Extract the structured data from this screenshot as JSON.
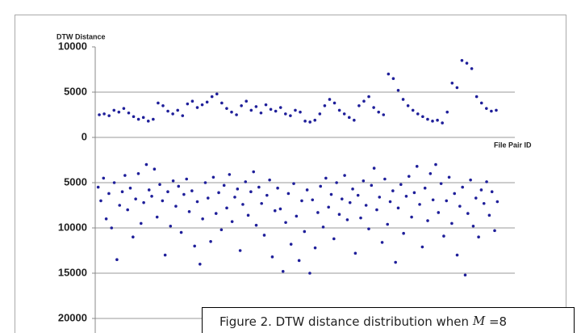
{
  "chart_data": {
    "type": "scatter",
    "y_label": "DTW Distance",
    "x_label": "File Pair ID",
    "ylim": [
      -21500,
      10000
    ],
    "yticks": [
      10000,
      5000,
      0,
      {
        "value": -5000,
        "label": "5000"
      },
      {
        "value": -10000,
        "label": "10000"
      },
      {
        "value": -15000,
        "label": "15000"
      },
      {
        "value": -20000,
        "label": "20000"
      }
    ],
    "grid": true,
    "series": [
      {
        "name": "upper",
        "color": "#1f1f9a",
        "values": [
          2500,
          2600,
          2400,
          3000,
          2800,
          3200,
          2700,
          2300,
          2000,
          2200,
          1800,
          2000,
          3800,
          3500,
          2900,
          2600,
          3000,
          2400,
          3700,
          4000,
          3300,
          3600,
          3900,
          4500,
          4800,
          3800,
          3200,
          2800,
          2500,
          3500,
          4000,
          3000,
          3400,
          2700,
          3600,
          3100,
          2900,
          3300,
          2600,
          2400,
          3000,
          2800,
          1800,
          1700,
          1900,
          2600,
          3500,
          4200,
          3800,
          3000,
          2600,
          2200,
          1900,
          3500,
          4000,
          4500,
          3300,
          2800,
          2500,
          7000,
          6500,
          5200,
          4200,
          3500,
          3000,
          2600,
          2300,
          2000,
          1800,
          1900,
          1600,
          2800,
          6000,
          5500,
          8500,
          8200,
          7600,
          4500,
          3800,
          3200,
          2900,
          3000
        ]
      },
      {
        "name": "lower",
        "color": "#1f1f9a",
        "values": [
          -5500,
          -7000,
          -4500,
          -9000,
          -6200,
          -10000,
          -5000,
          -13500,
          -7500,
          -6000,
          -4200,
          -8000,
          -5600,
          -11000,
          -6800,
          -4000,
          -9500,
          -7200,
          -3000,
          -5800,
          -6500,
          -3500,
          -8800,
          -5200,
          -7000,
          -13000,
          -6000,
          -9800,
          -4800,
          -7600,
          -5400,
          -10500,
          -6300,
          -4600,
          -8200,
          -5900,
          -12000,
          -7100,
          -14000,
          -9000,
          -5000,
          -6700,
          -11500,
          -4400,
          -8400,
          -6100,
          -10200,
          -5300,
          -7800,
          -4100,
          -9300,
          -6600,
          -5700,
          -12500,
          -7400,
          -4900,
          -8600,
          -6000,
          -3800,
          -9700,
          -5500,
          -7300,
          -10800,
          -6400,
          -4700,
          -13200,
          -8100,
          -5600,
          -7900,
          -14800,
          -9400,
          -6200,
          -11800,
          -5100,
          -8700,
          -13600,
          -7000,
          -10400,
          -5800,
          -15000,
          -6900,
          -12200,
          -8300,
          -5400,
          -9900,
          -4500,
          -7700,
          -6300,
          -11200,
          -5000,
          -8500,
          -6800,
          -4200,
          -9100,
          -7200,
          -5700,
          -12800,
          -6400,
          -8900,
          -4800,
          -7500,
          -10100,
          -5300,
          -3400,
          -8000,
          -6600,
          -11600,
          -4600,
          -9600,
          -7100,
          -5900,
          -13800,
          -7800,
          -5200,
          -10600,
          -6500,
          -4300,
          -8800,
          -6100,
          -3200,
          -7400,
          -12100,
          -5600,
          -9200,
          -4000,
          -6900,
          -3000,
          -8300,
          -5100,
          -10900,
          -7000,
          -4400,
          -9500,
          -6200,
          -13000,
          -7600,
          -5500,
          -15200,
          -8400,
          -4700,
          -9800,
          -6700,
          -11000,
          -5800,
          -7300,
          -4900,
          -8600,
          -6000,
          -10300,
          -7100
        ]
      }
    ]
  },
  "caption": {
    "before": "Figure 2. DTW distance distribution when ",
    "var": "M",
    "after": " =8"
  }
}
